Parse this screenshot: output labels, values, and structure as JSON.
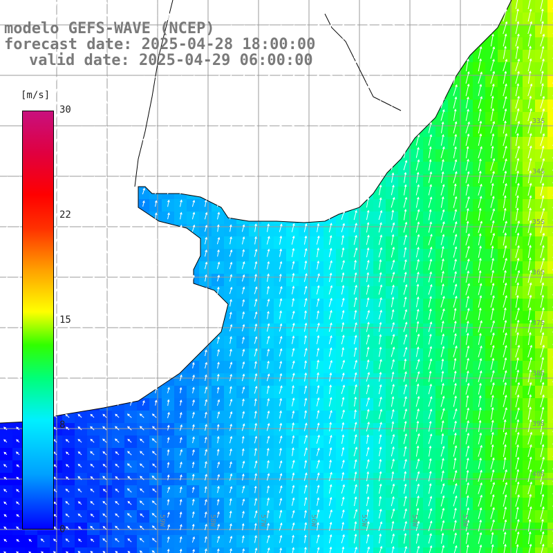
{
  "header": {
    "line1": "modelo GEFS-WAVE (NCEP)",
    "line2": "forecast date: 2025-04-28 18:00:00",
    "line3": "valid date: 2025-04-29 06:00:00"
  },
  "colorbar": {
    "unit": "[m/s]",
    "ticks": [
      "30",
      "22",
      "15",
      "8",
      "0"
    ],
    "tick_values": [
      30,
      22,
      15,
      8,
      0
    ],
    "range": [
      0,
      30
    ]
  },
  "map": {
    "grid_lines": "on",
    "longitude_labels": [
      "59W",
      "58W",
      "57W",
      "56W",
      "55W",
      "54W",
      "53W"
    ],
    "latitude_labels": [
      "33S",
      "34S",
      "35S",
      "36S",
      "37S",
      "38S",
      "39S",
      "40S"
    ],
    "colors": {
      "land": "#ffffff",
      "coast": "#000000",
      "grid": "#999999",
      "arrows": "#ffffff",
      "label": "#7a7a7a"
    },
    "wind_field": {
      "direction": "northward",
      "speed_min_m_s": 0,
      "speed_max_m_s": 15
    }
  }
}
